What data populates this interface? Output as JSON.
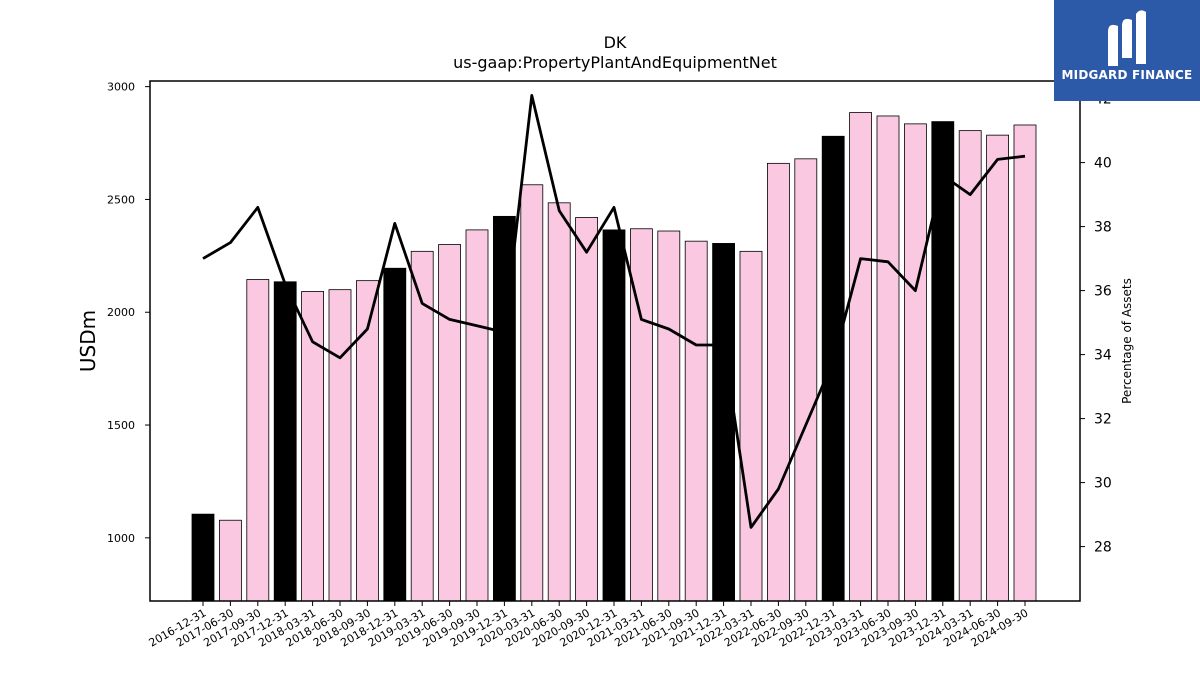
{
  "chart_data": {
    "type": "bar",
    "title": "DK",
    "subtitle": "us-gaap:PropertyPlantAndEquipmentNet",
    "ylabel": "USDm",
    "y2label": "Percentage of Assets",
    "ylim": [
      720,
      3025
    ],
    "y2lim": [
      26.3,
      42.55
    ],
    "yticks": [
      1000,
      1500,
      2000,
      2500,
      3000
    ],
    "y2ticks": [
      28,
      30,
      32,
      34,
      36,
      38,
      40,
      42
    ],
    "categories": [
      "2016-12-31",
      "2017-06-30",
      "2017-09-30",
      "2017-12-31",
      "2018-03-31",
      "2018-06-30",
      "2018-09-30",
      "2018-12-31",
      "2019-03-31",
      "2019-06-30",
      "2019-09-30",
      "2019-12-31",
      "2020-03-31",
      "2020-06-30",
      "2020-09-30",
      "2020-12-31",
      "2021-03-31",
      "2021-06-30",
      "2021-09-30",
      "2021-12-31",
      "2022-03-31",
      "2022-06-30",
      "2022-09-30",
      "2022-12-31",
      "2023-03-31",
      "2023-06-30",
      "2023-09-30",
      "2023-12-31",
      "2024-03-31",
      "2024-06-30",
      "2024-09-30"
    ],
    "series": [
      {
        "kind": "bar",
        "values": [
          1105,
          1078,
          2145,
          2135,
          2092,
          2100,
          2140,
          2195,
          2270,
          2300,
          2365,
          2425,
          2565,
          2485,
          2420,
          2365,
          2370,
          2360,
          2315,
          2305,
          2270,
          2660,
          2680,
          2780,
          2885,
          2870,
          2835,
          2845,
          2805,
          2785,
          2830
        ],
        "annual": [
          true,
          false,
          false,
          true,
          false,
          false,
          false,
          true,
          false,
          false,
          false,
          true,
          false,
          false,
          false,
          true,
          false,
          false,
          false,
          true,
          false,
          false,
          false,
          true,
          false,
          false,
          false,
          true,
          false,
          false,
          false
        ]
      },
      {
        "kind": "line",
        "axis": "right",
        "values": [
          37.0,
          37.5,
          38.6,
          36.2,
          34.4,
          33.9,
          34.8,
          38.1,
          35.6,
          35.1,
          34.9,
          34.7,
          42.1,
          38.5,
          37.2,
          38.6,
          35.1,
          34.8,
          34.3,
          34.3,
          28.6,
          29.8,
          31.8,
          33.8,
          37.0,
          36.9,
          36.0,
          39.6,
          39.0,
          40.1,
          40.2
        ]
      }
    ],
    "colors": {
      "annual_bar": "#000000",
      "quarter_bar": "#fbc8e2",
      "bar_edge": "#000000",
      "line": "#000000"
    },
    "grid": false,
    "legend": "none"
  },
  "logo": {
    "text": "MIDGARD FINANCE",
    "background": "#2d5aa8"
  }
}
